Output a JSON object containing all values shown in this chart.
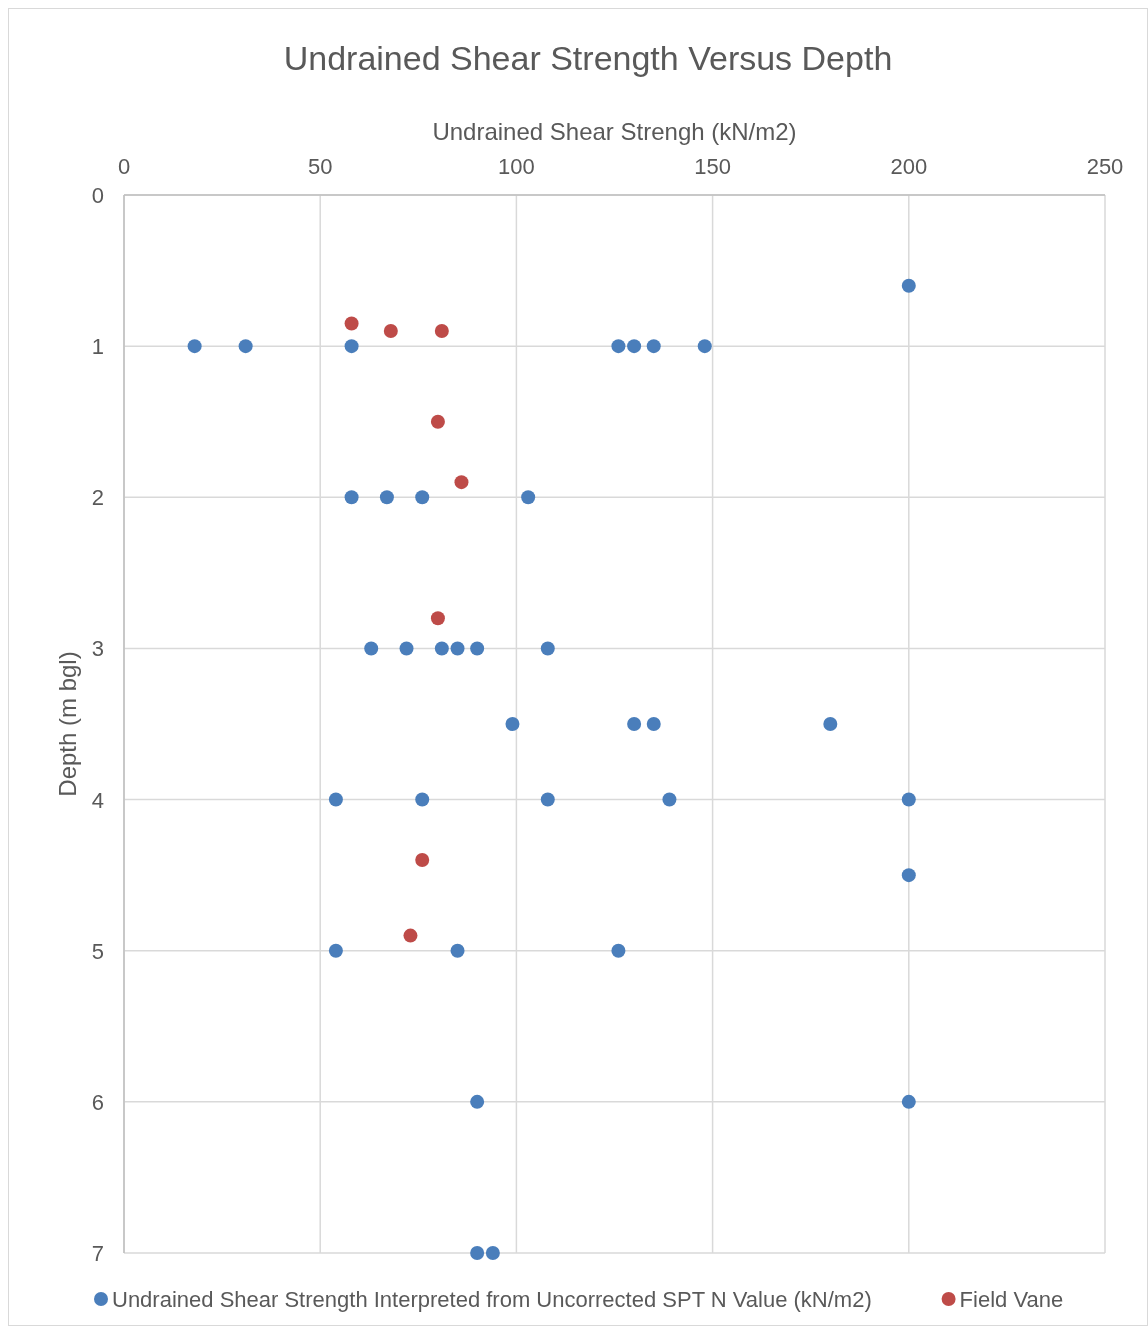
{
  "chart_data": {
    "type": "scatter",
    "title": "Undrained Shear Strength Versus Depth",
    "xlabel": "Undrained Shear Strengh (kN/m2)",
    "ylabel": "Depth (m bgl)",
    "xlim": [
      0,
      250
    ],
    "xticks": [
      0,
      50,
      100,
      150,
      200,
      250
    ],
    "ylim": [
      7,
      0
    ],
    "yticks": [
      0,
      1,
      2,
      3,
      4,
      5,
      6,
      7
    ],
    "grid": true,
    "legend": "bottom",
    "marker": "circle",
    "series": [
      {
        "name": "Undrained Shear Strength Interpreted from Uncorrected SPT N Value (kN/m2)",
        "color": "#4a7ebb",
        "x": [
          200,
          18,
          31,
          58,
          126,
          130,
          135,
          148,
          58,
          67,
          76,
          103,
          63,
          72,
          81,
          85,
          90,
          108,
          99,
          130,
          135,
          180,
          54,
          76,
          108,
          139,
          200,
          200,
          54,
          85,
          126,
          90,
          200,
          90,
          94
        ],
        "values": [
          0.6,
          1,
          1,
          1,
          1,
          1,
          1,
          1,
          2,
          2,
          2,
          2,
          3,
          3,
          3,
          3,
          3,
          3,
          3.5,
          3.5,
          3.5,
          3.5,
          4,
          4,
          4,
          4,
          4,
          4.5,
          5,
          5,
          5,
          6,
          6,
          7,
          7
        ]
      },
      {
        "name": "Field Vane",
        "color": "#be4b48",
        "x": [
          58,
          68,
          81,
          80,
          86,
          80,
          76,
          73
        ],
        "values": [
          0.85,
          0.9,
          0.9,
          1.5,
          1.9,
          2.8,
          4.4,
          4.9
        ]
      }
    ]
  }
}
